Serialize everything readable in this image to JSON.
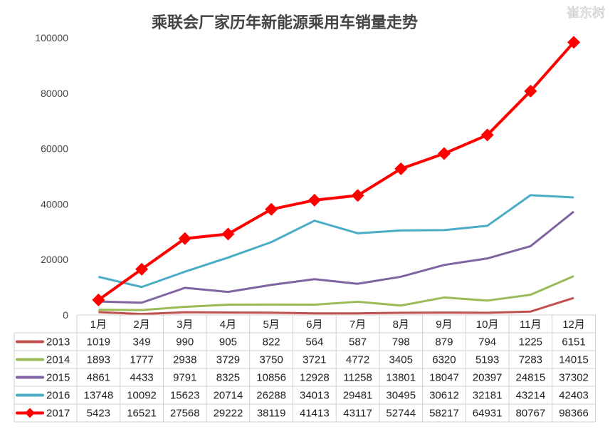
{
  "chart_data": {
    "type": "line",
    "title": "乘联会厂家历年新能源乘用车销量走势",
    "categories": [
      "1月",
      "2月",
      "3月",
      "4月",
      "5月",
      "6月",
      "7月",
      "8月",
      "9月",
      "10月",
      "11月",
      "12月"
    ],
    "ylim": [
      0,
      100000
    ],
    "yticks": [
      0,
      20000,
      40000,
      60000,
      80000,
      100000
    ],
    "grid": false,
    "legend": "data-table-below",
    "series": [
      {
        "name": "2013",
        "color": "#c0504d",
        "marker": "none",
        "values": [
          1019,
          349,
          990,
          905,
          822,
          564,
          587,
          798,
          879,
          794,
          1225,
          6151
        ]
      },
      {
        "name": "2014",
        "color": "#9bbb59",
        "marker": "none",
        "values": [
          1893,
          1777,
          2938,
          3729,
          3750,
          3721,
          4772,
          3405,
          6320,
          5193,
          7283,
          14015
        ]
      },
      {
        "name": "2015",
        "color": "#8064a2",
        "marker": "none",
        "values": [
          4861,
          4433,
          9791,
          8325,
          10856,
          12928,
          11258,
          13801,
          18047,
          20397,
          24815,
          37302
        ]
      },
      {
        "name": "2016",
        "color": "#4bacc6",
        "marker": "none",
        "values": [
          13748,
          10092,
          15623,
          20714,
          26288,
          34013,
          29481,
          30495,
          30612,
          32181,
          43214,
          42403
        ]
      },
      {
        "name": "2017",
        "color": "#ff0000",
        "marker": "diamond",
        "values": [
          5423,
          16521,
          27568,
          29222,
          38119,
          41413,
          43117,
          52744,
          58217,
          64931,
          80767,
          98366
        ]
      }
    ]
  },
  "watermark": "崔东树"
}
